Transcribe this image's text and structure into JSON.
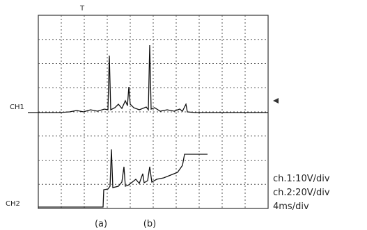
{
  "header": {
    "trigger": "T"
  },
  "channels": {
    "ch1": "CH1",
    "ch2": "CH2"
  },
  "settings": [
    "ch.1:10V/div",
    "ch.2:20V/div",
    "4ms/div"
  ],
  "markers": [
    "(a)",
    "(b)"
  ]
}
